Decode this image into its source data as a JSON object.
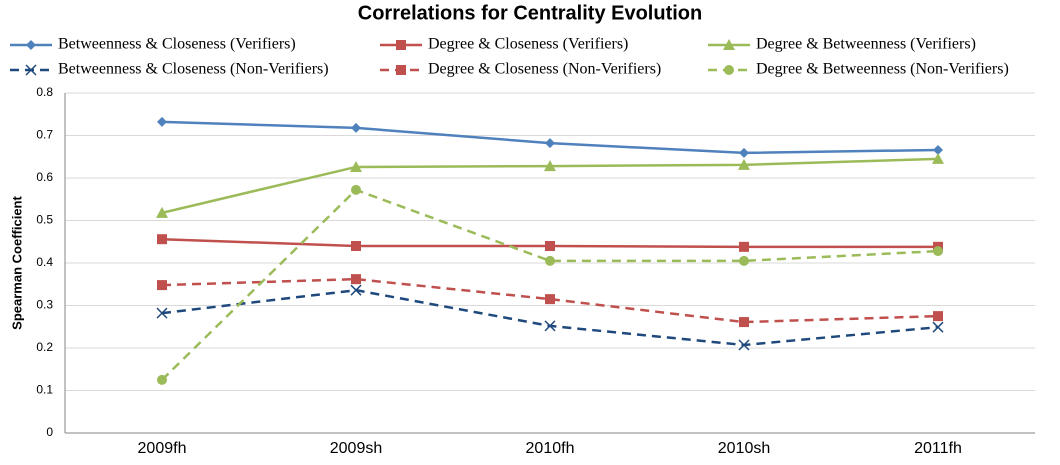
{
  "chart_data": {
    "type": "line",
    "title": "Correlations for Centrality Evolution",
    "y_label": "Spearman Coefficient",
    "categories": [
      "2009fh",
      "2009sh",
      "2010fh",
      "2010sh",
      "2011fh"
    ],
    "series": [
      {
        "name": "Betweenness & Closeness (Verifiers)",
        "color": "#4f81bd",
        "marker": "diamond",
        "dashed": false,
        "values": [
          0.732,
          0.718,
          0.682,
          0.659,
          0.666
        ]
      },
      {
        "name": "Degree & Closeness (Verifiers)",
        "color": "#c0504d",
        "marker": "square",
        "dashed": false,
        "values": [
          0.456,
          0.44,
          0.44,
          0.438,
          0.438
        ]
      },
      {
        "name": "Degree & Betweenness (Verifiers)",
        "color": "#9bbb59",
        "marker": "triangle",
        "dashed": false,
        "values": [
          0.518,
          0.626,
          0.628,
          0.631,
          0.645
        ]
      },
      {
        "name": "Betweenness & Closeness (Non-Verifiers)",
        "color": "#1f497d",
        "marker": "x",
        "dashed": true,
        "values": [
          0.282,
          0.336,
          0.252,
          0.207,
          0.249
        ]
      },
      {
        "name": "Degree & Closeness (Non-Verifiers)",
        "color": "#c0504d",
        "marker": "square",
        "dashed": true,
        "values": [
          0.348,
          0.362,
          0.315,
          0.261,
          0.275
        ]
      },
      {
        "name": "Degree & Betweenness (Non-Verifiers)",
        "color": "#9bbb59",
        "marker": "circle",
        "dashed": true,
        "values": [
          0.125,
          0.572,
          0.405,
          0.405,
          0.428
        ]
      }
    ],
    "ylim": [
      0,
      0.8
    ],
    "yticks": [
      0,
      0.1,
      0.2,
      0.3,
      0.4,
      0.5,
      0.6,
      0.7,
      0.8
    ],
    "grid": true,
    "legend": "top"
  }
}
